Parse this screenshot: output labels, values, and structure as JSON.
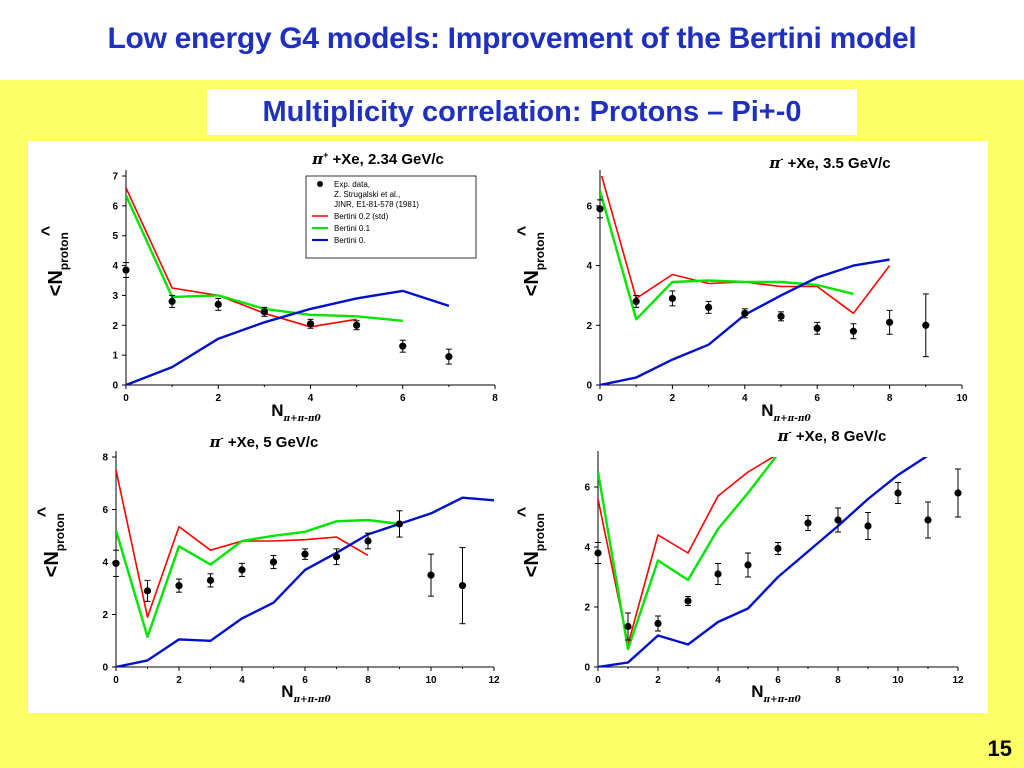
{
  "slide": {
    "title": "Low energy G4 models: Improvement of the Bertini model",
    "subtitle": "Multiplicity correlation: Protons – Pi+-0",
    "page_number": "15"
  },
  "colors": {
    "title_text": "#1f2fbf",
    "panel_background": "#ffff66",
    "series": [
      "#000000",
      "#ff0000",
      "#00e600",
      "#0010cc"
    ]
  },
  "chart_data": [
    {
      "type": "line",
      "title": "π+ +Xe, 2.34 GeV/c",
      "title_particle": "π",
      "title_sup": "+",
      "title_rest": " +Xe, 2.34 GeV/c",
      "ylabel_main": "<N",
      "ylabel_sub": "proton",
      "ylabel_hat": "^",
      "xlabel_main": "N",
      "xlabel_sub": "π+π-π0",
      "xlim": [
        0,
        8
      ],
      "ylim": [
        0,
        7
      ],
      "xticks": [
        0,
        2,
        4,
        6,
        8
      ],
      "yticks": [
        0,
        1,
        2,
        3,
        4,
        5,
        6,
        7
      ],
      "legend": {
        "position": "top-right",
        "entries": [
          {
            "lines": [
              "Exp. data,",
              "Z. Strugalski et al.,",
              "JINR, E1-81-578 (1981)"
            ]
          },
          {
            "lines": [
              "Bertini 0.2 (std)"
            ]
          },
          {
            "lines": [
              "Bertini 0.1"
            ]
          },
          {
            "lines": [
              "Bertini 0."
            ]
          }
        ]
      },
      "data": {
        "x": [
          0,
          1,
          2,
          3,
          4,
          5,
          6,
          7
        ],
        "y": [
          3.85,
          2.8,
          2.7,
          2.45,
          2.05,
          2.0,
          1.3,
          0.95
        ],
        "err": [
          0.25,
          0.2,
          0.2,
          0.15,
          0.15,
          0.15,
          0.2,
          0.25
        ]
      },
      "series": [
        {
          "x": [
            0,
            1,
            2,
            3,
            4,
            5
          ],
          "y": [
            6.6,
            3.25,
            3.0,
            2.4,
            1.95,
            2.2
          ]
        },
        {
          "x": [
            0,
            1,
            2,
            3,
            4,
            5,
            6
          ],
          "y": [
            6.35,
            2.95,
            3.0,
            2.55,
            2.35,
            2.3,
            2.15
          ]
        },
        {
          "x": [
            0,
            1,
            2,
            3,
            4,
            5,
            6,
            7
          ],
          "y": [
            0.0,
            0.6,
            1.55,
            2.1,
            2.55,
            2.9,
            3.15,
            2.65
          ]
        }
      ]
    },
    {
      "type": "line",
      "title": "π- +Xe, 3.5 GeV/c",
      "title_particle": "π",
      "title_sup": "-",
      "title_rest": " +Xe, 3.5 GeV/c",
      "ylabel_main": "<N",
      "ylabel_sub": "proton",
      "ylabel_hat": "^",
      "xlabel_main": "N",
      "xlabel_sub": "π+π-π0",
      "xlim": [
        0,
        10
      ],
      "ylim": [
        0,
        7
      ],
      "xticks": [
        0,
        2,
        4,
        6,
        8,
        10
      ],
      "yticks": [
        0,
        2,
        4,
        6
      ],
      "data": {
        "x": [
          0,
          1,
          2,
          3,
          4,
          5,
          6,
          7,
          8,
          9
        ],
        "y": [
          5.9,
          2.8,
          2.9,
          2.6,
          2.4,
          2.3,
          1.9,
          1.8,
          2.1,
          2.0
        ],
        "err": [
          0.3,
          0.2,
          0.25,
          0.2,
          0.15,
          0.15,
          0.2,
          0.25,
          0.4,
          1.05
        ]
      },
      "series": [
        {
          "x": [
            0,
            1,
            2,
            3,
            4,
            5,
            6,
            7,
            8
          ],
          "y": [
            7.2,
            2.9,
            3.7,
            3.4,
            3.45,
            3.3,
            3.3,
            2.4,
            4.0
          ]
        },
        {
          "x": [
            0,
            1,
            2,
            3,
            4,
            5,
            6,
            7
          ],
          "y": [
            6.5,
            2.2,
            3.45,
            3.5,
            3.45,
            3.45,
            3.35,
            3.05
          ]
        },
        {
          "x": [
            0,
            1,
            2,
            3,
            4,
            5,
            6,
            7,
            8
          ],
          "y": [
            0.0,
            0.25,
            0.85,
            1.35,
            2.35,
            3.0,
            3.6,
            4.0,
            4.2
          ]
        }
      ]
    },
    {
      "type": "line",
      "title": "π- +Xe, 5 GeV/c",
      "title_particle": "π",
      "title_sup": "-",
      "title_rest": " +Xe, 5 GeV/c",
      "ylabel_main": "<N",
      "ylabel_sub": "proton",
      "ylabel_hat": "^",
      "xlabel_main": "N",
      "xlabel_sub": "π+π-π0",
      "xlim": [
        0,
        12
      ],
      "ylim": [
        0,
        8
      ],
      "xticks": [
        0,
        2,
        4,
        6,
        8,
        10,
        12
      ],
      "yticks": [
        0,
        2,
        4,
        6,
        8
      ],
      "data": {
        "x": [
          0,
          1,
          2,
          3,
          4,
          5,
          6,
          7,
          8,
          9,
          10,
          11
        ],
        "y": [
          3.95,
          2.9,
          3.1,
          3.3,
          3.7,
          4.0,
          4.3,
          4.2,
          4.8,
          5.45,
          3.5,
          3.1
        ],
        "err": [
          0.5,
          0.4,
          0.25,
          0.25,
          0.25,
          0.25,
          0.2,
          0.3,
          0.3,
          0.5,
          0.8,
          1.45
        ]
      },
      "series": [
        {
          "x": [
            0,
            1,
            2,
            3,
            4,
            5,
            6,
            7,
            8
          ],
          "y": [
            7.5,
            1.9,
            5.35,
            4.45,
            4.8,
            4.8,
            4.85,
            4.95,
            4.25
          ]
        },
        {
          "x": [
            0,
            1,
            2,
            3,
            4,
            5,
            6,
            7,
            8,
            9
          ],
          "y": [
            5.2,
            1.15,
            4.6,
            3.9,
            4.8,
            5.0,
            5.15,
            5.55,
            5.6,
            5.45
          ]
        },
        {
          "x": [
            0,
            1,
            2,
            3,
            4,
            5,
            6,
            7,
            8,
            9,
            10,
            11,
            12
          ],
          "y": [
            0.0,
            0.25,
            1.05,
            1.0,
            1.85,
            2.45,
            3.7,
            4.35,
            5.05,
            5.45,
            5.85,
            6.45,
            6.35
          ]
        }
      ]
    },
    {
      "type": "line",
      "title": "π- +Xe, 8 GeV/c",
      "title_particle": "π",
      "title_sup": "-",
      "title_rest": " +Xe, 8 GeV/c",
      "ylabel_main": "<N",
      "ylabel_sub": "proton",
      "ylabel_hat": "^",
      "xlabel_main": "N",
      "xlabel_sub": "π+π-π0",
      "xlim": [
        0,
        12
      ],
      "ylim": [
        0,
        7
      ],
      "xticks": [
        0,
        2,
        4,
        6,
        8,
        10,
        12
      ],
      "yticks": [
        0,
        2,
        4,
        6
      ],
      "data": {
        "x": [
          0,
          1,
          2,
          3,
          4,
          5,
          6,
          7,
          8,
          9,
          10,
          11,
          12
        ],
        "y": [
          3.8,
          1.35,
          1.45,
          2.2,
          3.1,
          3.4,
          3.95,
          4.8,
          4.9,
          4.7,
          5.8,
          4.9,
          5.8
        ],
        "err": [
          0.35,
          0.45,
          0.25,
          0.15,
          0.35,
          0.4,
          0.2,
          0.25,
          0.4,
          0.45,
          0.35,
          0.6,
          0.8
        ]
      },
      "series": [
        {
          "x": [
            0,
            1,
            2,
            3,
            4,
            5,
            6
          ],
          "y": [
            5.6,
            0.75,
            4.4,
            3.8,
            5.7,
            6.5,
            7.1
          ]
        },
        {
          "x": [
            0,
            1,
            2,
            3,
            4,
            5,
            6
          ],
          "y": [
            6.5,
            0.6,
            3.55,
            2.9,
            4.6,
            5.8,
            7.1
          ]
        },
        {
          "x": [
            0,
            1,
            2,
            3,
            4,
            5,
            6,
            7,
            8,
            9,
            10,
            11,
            12
          ],
          "y": [
            0.0,
            0.15,
            1.05,
            0.75,
            1.5,
            1.95,
            3.0,
            3.85,
            4.7,
            5.6,
            6.4,
            7.05,
            7.2
          ]
        }
      ]
    }
  ]
}
